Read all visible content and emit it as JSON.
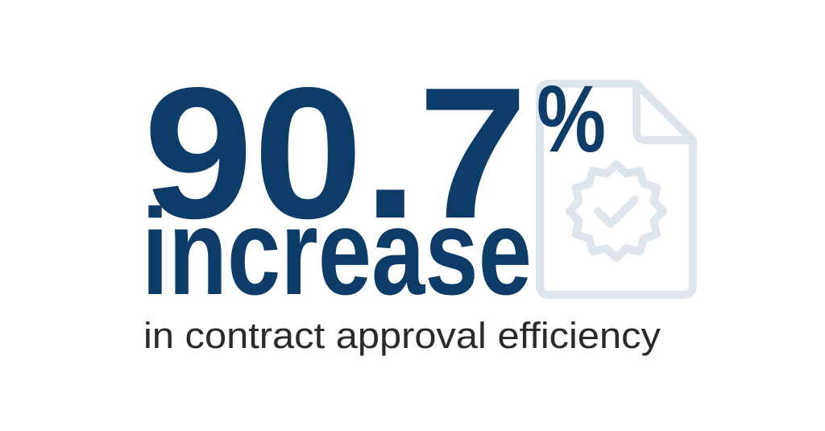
{
  "stat": {
    "value": 90.7,
    "unit": "%",
    "label": "increase",
    "description": "in contract approval efficiency"
  }
}
